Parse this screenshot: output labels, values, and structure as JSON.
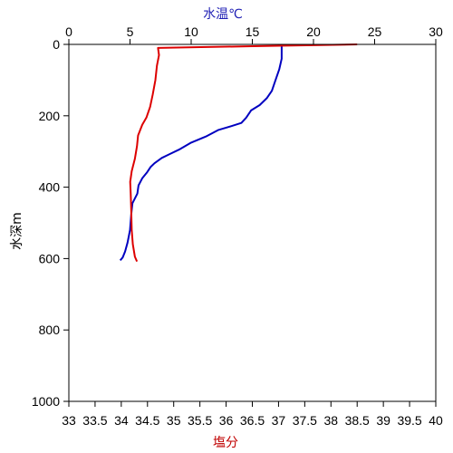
{
  "chart_data": {
    "type": "line",
    "axes": {
      "temperature": {
        "label": "水温℃",
        "position": "top",
        "range": [
          0,
          30
        ],
        "ticks": [
          0,
          5,
          10,
          15,
          20,
          25,
          30
        ],
        "tick_labels": [
          "0",
          "5",
          "10",
          "15",
          "20",
          "25",
          "30"
        ],
        "color": "#1f1fb4"
      },
      "salinity": {
        "label": "塩分",
        "position": "bottom",
        "range": [
          33,
          40
        ],
        "ticks": [
          33,
          33.5,
          34,
          34.5,
          35,
          35.5,
          36,
          36.5,
          37,
          37.5,
          38,
          38.5,
          39,
          39.5,
          40
        ],
        "tick_labels": [
          "33",
          "33.5",
          "34",
          "34.5",
          "35",
          "35.5",
          "36",
          "36.5",
          "37",
          "37.5",
          "38",
          "38.5",
          "39",
          "39.5",
          "40"
        ],
        "color": "#c00000"
      },
      "depth": {
        "label": "水深m",
        "position": "left",
        "range": [
          0,
          1000
        ],
        "inverted": true,
        "ticks": [
          0,
          200,
          400,
          600,
          800,
          1000
        ],
        "tick_labels": [
          "0",
          "200",
          "400",
          "600",
          "800",
          "1000"
        ],
        "color": "#000000"
      }
    },
    "series": [
      {
        "axis": "temperature",
        "color": "#0000c0",
        "points": [
          [
            17.4,
            0
          ],
          [
            17.4,
            40
          ],
          [
            17.2,
            70
          ],
          [
            16.9,
            100
          ],
          [
            16.6,
            130
          ],
          [
            16.2,
            150
          ],
          [
            15.6,
            170
          ],
          [
            14.9,
            185
          ],
          [
            14.5,
            205
          ],
          [
            14.1,
            220
          ],
          [
            13.2,
            230
          ],
          [
            12.2,
            240
          ],
          [
            11.2,
            258
          ],
          [
            10.0,
            275
          ],
          [
            9.0,
            295
          ],
          [
            8.2,
            308
          ],
          [
            7.6,
            318
          ],
          [
            7.0,
            333
          ],
          [
            6.7,
            343
          ],
          [
            6.4,
            358
          ],
          [
            6.0,
            375
          ],
          [
            5.7,
            395
          ],
          [
            5.6,
            418
          ],
          [
            5.2,
            445
          ],
          [
            5.1,
            478
          ],
          [
            5.0,
            520
          ],
          [
            4.8,
            555
          ],
          [
            4.6,
            580
          ],
          [
            4.4,
            597
          ],
          [
            4.2,
            605
          ]
        ]
      },
      {
        "axis": "salinity",
        "color": "#dd0000",
        "points": [
          [
            38.5,
            0
          ],
          [
            36.5,
            5
          ],
          [
            34.7,
            10
          ],
          [
            34.72,
            30
          ],
          [
            34.68,
            60
          ],
          [
            34.65,
            100
          ],
          [
            34.6,
            140
          ],
          [
            34.55,
            175
          ],
          [
            34.48,
            205
          ],
          [
            34.4,
            225
          ],
          [
            34.32,
            255
          ],
          [
            34.3,
            285
          ],
          [
            34.26,
            320
          ],
          [
            34.2,
            355
          ],
          [
            34.17,
            385
          ],
          [
            34.18,
            420
          ],
          [
            34.19,
            460
          ],
          [
            34.2,
            520
          ],
          [
            34.22,
            560
          ],
          [
            34.26,
            595
          ],
          [
            34.3,
            608
          ]
        ]
      }
    ]
  }
}
